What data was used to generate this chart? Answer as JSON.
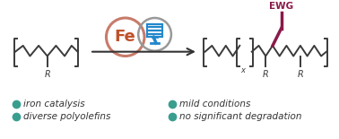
{
  "bg_color": "#ffffff",
  "fe_circle_color": "#c87b6a",
  "fe_text_color": "#c0522a",
  "light_circle_color": "#999999",
  "light_blue_color": "#2288cc",
  "arrow_color": "#333333",
  "bond_color": "#3a3a3a",
  "ewg_color": "#8b1a4a",
  "label_color": "#333333",
  "bullet_color": "#3a9e8f",
  "labels_left": [
    "iron catalysis",
    "diverse polyolefins"
  ],
  "labels_right": [
    "mild conditions",
    "no significant degradation"
  ],
  "figsize": [
    3.78,
    1.55
  ],
  "dpi": 100
}
